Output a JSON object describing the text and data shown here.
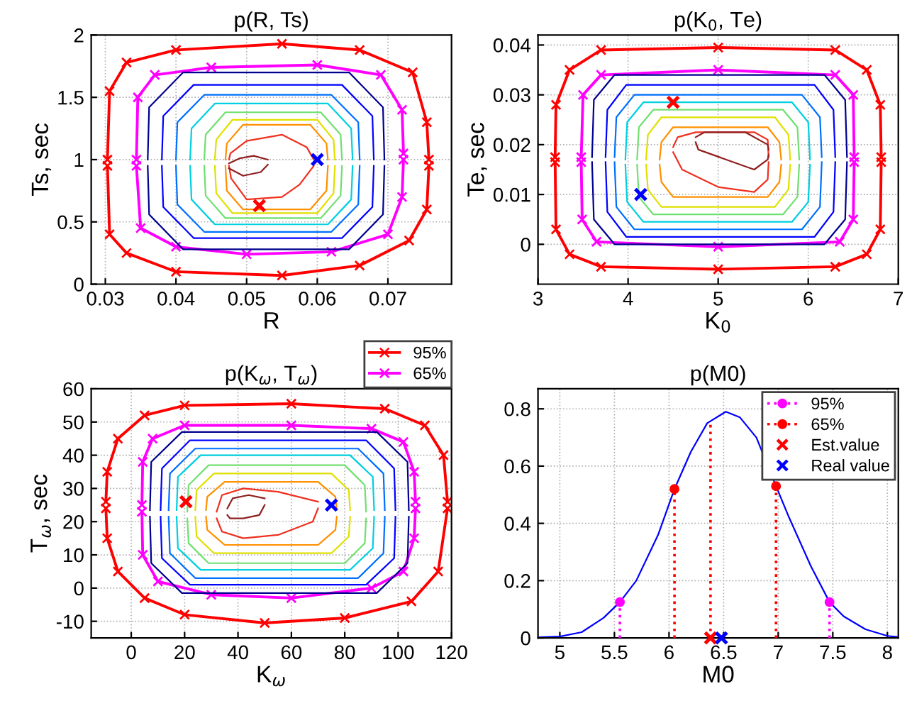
{
  "chart_data": [
    {
      "type": "line",
      "title": "p(R, Ts)",
      "xlabel": "R",
      "ylabel": "Ts, sec",
      "xlim": [
        0.028,
        0.079
      ],
      "ylim": [
        0,
        2
      ],
      "xticks": [
        0.03,
        0.04,
        0.05,
        0.06,
        0.07
      ],
      "yticks": [
        0,
        0.5,
        1,
        1.5,
        2
      ],
      "grid": true,
      "series": [
        {
          "color": "#ff0000",
          "marker": "cross",
          "x": [
            0.0303,
            0.0306,
            0.033,
            0.04,
            0.055,
            0.066,
            0.0735,
            0.0755,
            0.0758
          ],
          "values": [
            1.0,
            1.55,
            1.78,
            1.88,
            1.93,
            1.88,
            1.7,
            1.3,
            1.0
          ]
        },
        {
          "color": "#ff0000",
          "marker": "cross",
          "x": [
            0.0303,
            0.0306,
            0.033,
            0.04,
            0.055,
            0.066,
            0.073,
            0.0755,
            0.0758
          ],
          "values": [
            0.95,
            0.4,
            0.25,
            0.1,
            0.07,
            0.15,
            0.35,
            0.6,
            0.95
          ]
        },
        {
          "color": "#ff00ff",
          "marker": "cross",
          "x": [
            0.0344,
            0.0346,
            0.037,
            0.045,
            0.06,
            0.069,
            0.072,
            0.0722
          ],
          "values": [
            1.0,
            1.5,
            1.68,
            1.74,
            1.76,
            1.68,
            1.4,
            1.05
          ]
        },
        {
          "color": "#ff00ff",
          "marker": "cross",
          "x": [
            0.0344,
            0.035,
            0.04,
            0.05,
            0.062,
            0.07,
            0.072,
            0.0722
          ],
          "values": [
            0.95,
            0.45,
            0.3,
            0.24,
            0.26,
            0.4,
            0.7,
            1.0
          ]
        },
        {
          "color": "#000090",
          "x": [
            0.036,
            0.0362,
            0.041,
            0.0645,
            0.0693,
            0.0695
          ],
          "values": [
            1.0,
            1.42,
            1.7,
            1.7,
            1.42,
            1.0
          ]
        },
        {
          "color": "#000090",
          "x": [
            0.036,
            0.0362,
            0.041,
            0.0645,
            0.0693,
            0.0695
          ],
          "values": [
            0.95,
            0.56,
            0.28,
            0.28,
            0.56,
            0.95
          ]
        },
        {
          "color": "#0000ff",
          "x": [
            0.038,
            0.0382,
            0.0425,
            0.0635,
            0.0678,
            0.068
          ],
          "values": [
            1.0,
            1.35,
            1.6,
            1.6,
            1.35,
            1.0
          ]
        },
        {
          "color": "#0000ff",
          "x": [
            0.038,
            0.0382,
            0.0425,
            0.0635,
            0.0678,
            0.068
          ],
          "values": [
            0.95,
            0.62,
            0.37,
            0.37,
            0.62,
            0.95
          ]
        },
        {
          "color": "#0070ff",
          "x": [
            0.04,
            0.0402,
            0.044,
            0.062,
            0.0658,
            0.066
          ],
          "values": [
            1.0,
            1.3,
            1.52,
            1.52,
            1.3,
            1.0
          ]
        },
        {
          "color": "#0070ff",
          "x": [
            0.04,
            0.0402,
            0.044,
            0.062,
            0.0658,
            0.066
          ],
          "values": [
            0.95,
            0.64,
            0.42,
            0.42,
            0.64,
            0.95
          ]
        },
        {
          "color": "#00d0e0",
          "x": [
            0.042,
            0.0422,
            0.0455,
            0.0615,
            0.0648,
            0.065
          ],
          "values": [
            1.0,
            1.25,
            1.45,
            1.45,
            1.25,
            1.0
          ]
        },
        {
          "color": "#00d0e0",
          "x": [
            0.042,
            0.0422,
            0.0455,
            0.0615,
            0.0648,
            0.065
          ],
          "values": [
            0.95,
            0.68,
            0.48,
            0.48,
            0.68,
            0.95
          ]
        },
        {
          "color": "#70e070",
          "x": [
            0.044,
            0.0442,
            0.047,
            0.0605,
            0.0633,
            0.0635
          ],
          "values": [
            1.0,
            1.2,
            1.38,
            1.38,
            1.2,
            1.0
          ]
        },
        {
          "color": "#70e070",
          "x": [
            0.044,
            0.0442,
            0.047,
            0.0605,
            0.0633,
            0.0635
          ],
          "values": [
            0.95,
            0.71,
            0.53,
            0.53,
            0.71,
            0.95
          ]
        },
        {
          "color": "#e0e000",
          "x": [
            0.0455,
            0.0457,
            0.048,
            0.06,
            0.0623,
            0.0625
          ],
          "values": [
            1.0,
            1.16,
            1.32,
            1.32,
            1.16,
            1.0
          ]
        },
        {
          "color": "#e0e000",
          "x": [
            0.0455,
            0.0457,
            0.048,
            0.06,
            0.0623,
            0.0625
          ],
          "values": [
            0.95,
            0.73,
            0.57,
            0.57,
            0.73,
            0.95
          ]
        },
        {
          "color": "#ff9000",
          "x": [
            0.047,
            0.0472,
            0.0495,
            0.059,
            0.0613,
            0.0615
          ],
          "values": [
            1.0,
            1.13,
            1.28,
            1.28,
            1.13,
            1.0
          ]
        },
        {
          "color": "#ff9000",
          "x": [
            0.047,
            0.0472,
            0.0495,
            0.059,
            0.0613,
            0.0615
          ],
          "values": [
            0.95,
            0.75,
            0.6,
            0.6,
            0.75,
            0.95
          ]
        },
        {
          "color": "#f03020",
          "x": [
            0.0475,
            0.0477,
            0.05,
            0.055,
            0.0585,
            0.0595
          ],
          "values": [
            1.0,
            1.05,
            1.15,
            1.2,
            1.1,
            1.0
          ]
        },
        {
          "color": "#f03020",
          "x": [
            0.0475,
            0.0478,
            0.05,
            0.055,
            0.0575,
            0.0595
          ],
          "values": [
            0.95,
            0.85,
            0.68,
            0.7,
            0.8,
            0.95
          ]
        },
        {
          "color": "#902020",
          "x": [
            0.0475,
            0.049,
            0.051,
            0.053
          ],
          "values": [
            0.97,
            1.01,
            1.03,
            1.0
          ]
        },
        {
          "color": "#902020",
          "x": [
            0.0475,
            0.0495,
            0.052,
            0.053
          ],
          "values": [
            0.93,
            0.87,
            0.9,
            0.96
          ]
        },
        {
          "type": "scatter",
          "color": "#ff0000",
          "marker": "cross",
          "x": [
            0.0518
          ],
          "values": [
            0.63
          ]
        },
        {
          "type": "scatter",
          "color": "#0000ff",
          "marker": "cross",
          "x": [
            0.06
          ],
          "values": [
            1.0
          ]
        }
      ]
    },
    {
      "type": "line",
      "title": "p(K$_{0}$, Te)",
      "xlabel": "K$_{0}$",
      "ylabel": "Te, sec",
      "xlim": [
        3,
        7
      ],
      "ylim": [
        -0.008,
        0.042
      ],
      "xticks": [
        3,
        4,
        5,
        6,
        7
      ],
      "yticks": [
        0,
        0.01,
        0.02,
        0.03,
        0.04
      ],
      "grid": true,
      "series": [
        {
          "color": "#ff0000",
          "marker": "cross",
          "x": [
            3.19,
            3.2,
            3.35,
            3.7,
            5,
            6.3,
            6.65,
            6.8,
            6.81
          ],
          "values": [
            0.0175,
            0.028,
            0.035,
            0.039,
            0.0395,
            0.039,
            0.035,
            0.028,
            0.0175
          ]
        },
        {
          "color": "#ff0000",
          "marker": "cross",
          "x": [
            3.19,
            3.2,
            3.35,
            3.7,
            5,
            6.3,
            6.65,
            6.8,
            6.81
          ],
          "values": [
            0.0165,
            0.003,
            -0.002,
            -0.0045,
            -0.005,
            -0.0045,
            -0.002,
            0.003,
            0.0165
          ]
        },
        {
          "color": "#ff00ff",
          "marker": "cross",
          "x": [
            3.48,
            3.5,
            3.7,
            5,
            6.3,
            6.5,
            6.51
          ],
          "values": [
            0.0175,
            0.03,
            0.034,
            0.035,
            0.034,
            0.03,
            0.0175
          ]
        },
        {
          "color": "#ff00ff",
          "marker": "cross",
          "x": [
            3.48,
            3.49,
            3.65,
            5,
            6.35,
            6.5,
            6.51
          ],
          "values": [
            0.0165,
            0.005,
            0.0005,
            -0.0005,
            0.0005,
            0.005,
            0.0165
          ]
        },
        {
          "color": "#000090",
          "x": [
            3.6,
            3.62,
            3.85,
            6.18,
            6.41,
            6.43
          ],
          "values": [
            0.0175,
            0.029,
            0.034,
            0.034,
            0.029,
            0.0175
          ]
        },
        {
          "color": "#000090",
          "x": [
            3.6,
            3.62,
            3.85,
            6.18,
            6.41,
            6.43
          ],
          "values": [
            0.0165,
            0.005,
            0,
            0,
            0.005,
            0.0165
          ]
        },
        {
          "color": "#0000ff",
          "x": [
            3.75,
            3.77,
            3.98,
            6.07,
            6.28,
            6.3
          ],
          "values": [
            0.0175,
            0.027,
            0.032,
            0.032,
            0.027,
            0.0175
          ]
        },
        {
          "color": "#0000ff",
          "x": [
            3.75,
            3.77,
            3.98,
            6.07,
            6.28,
            6.3
          ],
          "values": [
            0.0165,
            0.0065,
            0.0015,
            0.0015,
            0.0065,
            0.0165
          ]
        },
        {
          "color": "#0070ff",
          "x": [
            3.85,
            3.87,
            4.07,
            5.93,
            6.13,
            6.15
          ],
          "values": [
            0.0175,
            0.0255,
            0.03,
            0.03,
            0.0255,
            0.0175
          ]
        },
        {
          "color": "#0070ff",
          "x": [
            3.85,
            3.87,
            4.07,
            5.93,
            6.13,
            6.15
          ],
          "values": [
            0.0165,
            0.0075,
            0.003,
            0.003,
            0.0075,
            0.0165
          ]
        },
        {
          "color": "#00d0e0",
          "x": [
            3.97,
            3.99,
            4.17,
            5.82,
            6.0,
            6.02
          ],
          "values": [
            0.017,
            0.0245,
            0.0285,
            0.0285,
            0.0245,
            0.017
          ]
        },
        {
          "color": "#00d0e0",
          "x": [
            3.97,
            3.99,
            4.17,
            5.82,
            6.0,
            6.02
          ],
          "values": [
            0.016,
            0.0085,
            0.0045,
            0.0045,
            0.0085,
            0.016
          ]
        },
        {
          "color": "#70e070",
          "x": [
            4.1,
            4.12,
            4.28,
            5.72,
            5.88,
            5.9
          ],
          "values": [
            0.017,
            0.0235,
            0.027,
            0.027,
            0.0235,
            0.017
          ]
        },
        {
          "color": "#70e070",
          "x": [
            4.1,
            4.12,
            4.28,
            5.72,
            5.88,
            5.9
          ],
          "values": [
            0.016,
            0.0095,
            0.006,
            0.006,
            0.0095,
            0.016
          ]
        },
        {
          "color": "#e0e000",
          "x": [
            4.2,
            4.22,
            4.37,
            5.63,
            5.78,
            5.8
          ],
          "values": [
            0.017,
            0.022,
            0.0255,
            0.0255,
            0.022,
            0.017
          ]
        },
        {
          "color": "#e0e000",
          "x": [
            4.2,
            4.22,
            4.37,
            5.63,
            5.78,
            5.8
          ],
          "values": [
            0.016,
            0.011,
            0.0075,
            0.0075,
            0.011,
            0.016
          ]
        },
        {
          "color": "#ff9000",
          "x": [
            4.35,
            4.37,
            4.5,
            5.55,
            5.68,
            5.7
          ],
          "values": [
            0.017,
            0.0205,
            0.0235,
            0.0235,
            0.0205,
            0.017
          ]
        },
        {
          "color": "#ff9000",
          "x": [
            4.35,
            4.37,
            4.5,
            5.55,
            5.68,
            5.7
          ],
          "values": [
            0.016,
            0.0125,
            0.0095,
            0.0095,
            0.0125,
            0.016
          ]
        },
        {
          "color": "#f03020",
          "x": [
            4.5,
            4.55,
            4.75,
            5.4,
            5.55,
            5.56
          ],
          "values": [
            0.0195,
            0.0215,
            0.0225,
            0.0225,
            0.021,
            0.0175
          ]
        },
        {
          "color": "#f03020",
          "x": [
            4.5,
            4.6,
            5.0,
            5.4,
            5.55,
            5.56
          ],
          "values": [
            0.0185,
            0.015,
            0.0115,
            0.0105,
            0.013,
            0.0165
          ]
        },
        {
          "color": "#902020",
          "x": [
            4.75,
            4.85,
            5.3,
            5.55,
            5.56
          ],
          "values": [
            0.0215,
            0.0225,
            0.0225,
            0.02,
            0.019
          ]
        },
        {
          "color": "#902020",
          "x": [
            4.75,
            4.78,
            5.4,
            5.55,
            5.56
          ],
          "values": [
            0.0205,
            0.019,
            0.015,
            0.017,
            0.018
          ]
        },
        {
          "type": "scatter",
          "color": "#ff0000",
          "marker": "cross",
          "x": [
            4.5
          ],
          "values": [
            0.0285
          ]
        },
        {
          "type": "scatter",
          "color": "#0000ff",
          "marker": "cross",
          "x": [
            4.14
          ],
          "values": [
            0.01
          ]
        }
      ]
    },
    {
      "type": "line",
      "title": "p(K$_{ω}$, T$_{ω}$)",
      "xlabel": "K$_{ω}$",
      "ylabel": "T$_{ω}$, sec",
      "xlim": [
        -15,
        120
      ],
      "ylim": [
        -15,
        60
      ],
      "xticks": [
        0,
        20,
        40,
        60,
        80,
        100,
        120
      ],
      "yticks": [
        -10,
        0,
        10,
        20,
        30,
        40,
        50,
        60
      ],
      "grid": true,
      "legend": "top",
      "series": [
        {
          "name": "95%",
          "color": "#ff0000",
          "marker": "cross",
          "x": [
            -9.5,
            -9,
            -5,
            5,
            20,
            60,
            95,
            110,
            117,
            118.5
          ],
          "values": [
            26,
            35,
            45,
            52,
            55,
            55.5,
            54,
            49,
            40,
            26
          ]
        },
        {
          "color": "#ff0000",
          "marker": "cross",
          "x": [
            -9.5,
            -9,
            -5,
            5,
            20,
            50,
            80,
            105,
            115,
            118.5
          ],
          "values": [
            24,
            15,
            5,
            -3,
            -8,
            -10.5,
            -9,
            -4,
            5,
            24
          ]
        },
        {
          "name": "65%",
          "color": "#ff00ff",
          "marker": "cross",
          "x": [
            4,
            4.3,
            8,
            20,
            60,
            90,
            102,
            106,
            106.5
          ],
          "values": [
            25,
            38,
            45,
            49,
            49,
            48,
            44,
            35,
            26
          ]
        },
        {
          "color": "#ff00ff",
          "marker": "cross",
          "x": [
            4,
            4.3,
            10,
            30,
            60,
            90,
            102,
            106,
            106.5
          ],
          "values": [
            23,
            10,
            2,
            -2,
            -3,
            0,
            5,
            15,
            24
          ]
        },
        {
          "color": "#000090",
          "x": [
            7,
            7.5,
            19,
            92,
            103.5,
            104
          ],
          "values": [
            23.5,
            38,
            47,
            47,
            38,
            23.5
          ]
        },
        {
          "color": "#000090",
          "x": [
            7,
            7.5,
            19,
            92,
            103.5,
            104
          ],
          "values": [
            21.5,
            7.5,
            -1.5,
            -1.5,
            7.5,
            21.5
          ]
        },
        {
          "color": "#0000ff",
          "x": [
            11,
            11.5,
            22,
            88,
            98.5,
            99
          ],
          "values": [
            23.5,
            36,
            44.5,
            44.5,
            36,
            23.5
          ]
        },
        {
          "color": "#0000ff",
          "x": [
            11,
            11.5,
            22,
            88,
            98.5,
            99
          ],
          "values": [
            21.5,
            9,
            1,
            1,
            9,
            21.5
          ]
        },
        {
          "color": "#0070ff",
          "x": [
            14,
            14.5,
            24,
            85,
            94.5,
            95
          ],
          "values": [
            23.5,
            34.5,
            42,
            42,
            34.5,
            23.5
          ]
        },
        {
          "color": "#0070ff",
          "x": [
            14,
            14.5,
            24,
            85,
            94.5,
            95
          ],
          "values": [
            21.5,
            10.5,
            3,
            3,
            10.5,
            21.5
          ]
        },
        {
          "color": "#00d0e0",
          "x": [
            17,
            17.5,
            26,
            82,
            90.5,
            91
          ],
          "values": [
            23.5,
            33.5,
            40,
            40,
            33.5,
            23.5
          ]
        },
        {
          "color": "#00d0e0",
          "x": [
            17,
            17.5,
            26,
            82,
            90.5,
            91
          ],
          "values": [
            21.5,
            12,
            5.5,
            5.5,
            12,
            21.5
          ]
        },
        {
          "color": "#70e070",
          "x": [
            21,
            21.5,
            29,
            80,
            87.5,
            88
          ],
          "values": [
            23,
            31,
            37,
            37,
            31,
            23
          ]
        },
        {
          "color": "#70e070",
          "x": [
            21,
            21.5,
            29,
            80,
            87.5,
            88
          ],
          "values": [
            21,
            13.5,
            7.5,
            7.5,
            13.5,
            21
          ]
        },
        {
          "color": "#e0e000",
          "x": [
            24,
            24.5,
            31,
            75,
            81.5,
            82
          ],
          "values": [
            23.5,
            29.5,
            34.5,
            34.5,
            29.5,
            23.5
          ]
        },
        {
          "color": "#e0e000",
          "x": [
            24,
            24.5,
            31,
            75,
            81.5,
            82
          ],
          "values": [
            21.5,
            15.5,
            10.5,
            10.5,
            15.5,
            21.5
          ]
        },
        {
          "color": "#ff9000",
          "x": [
            28,
            28.5,
            35,
            70,
            76.5,
            77
          ],
          "values": [
            23.5,
            27.5,
            32,
            32,
            27.5,
            23.5
          ]
        },
        {
          "color": "#ff9000",
          "x": [
            28,
            28.5,
            35,
            70,
            76.5,
            77
          ],
          "values": [
            21.5,
            17.5,
            13,
            13,
            17.5,
            21.5
          ]
        },
        {
          "color": "#f03020",
          "x": [
            32,
            34,
            42,
            55,
            70
          ],
          "values": [
            23,
            28,
            30,
            29,
            26
          ]
        },
        {
          "color": "#f03020",
          "x": [
            32,
            34,
            42,
            55,
            68,
            70
          ],
          "values": [
            21,
            17,
            15,
            16,
            20,
            24
          ]
        },
        {
          "color": "#902020",
          "x": [
            36,
            38,
            44,
            50
          ],
          "values": [
            24,
            27,
            28,
            27
          ]
        },
        {
          "color": "#902020",
          "x": [
            36,
            37,
            42,
            48,
            50
          ],
          "values": [
            22,
            21,
            21,
            22,
            25
          ]
        },
        {
          "type": "scatter",
          "color": "#ff0000",
          "marker": "cross",
          "x": [
            20.5
          ],
          "values": [
            26
          ]
        },
        {
          "type": "scatter",
          "color": "#0000ff",
          "marker": "cross",
          "x": [
            75
          ],
          "values": [
            25
          ]
        }
      ]
    },
    {
      "type": "line",
      "title": "p(M0)",
      "xlabel": "M0",
      "xlim": [
        4.8,
        8.1
      ],
      "ylim": [
        0,
        0.87
      ],
      "xticks": [
        5,
        5.5,
        6,
        6.5,
        7,
        7.5,
        8
      ],
      "yticks": [
        0,
        0.2,
        0.4,
        0.6,
        0.8
      ],
      "grid": true,
      "legend": "top right",
      "series": [
        {
          "color": "#0000ff",
          "x": [
            4.8,
            5.0,
            5.2,
            5.4,
            5.55,
            5.7,
            5.9,
            6.05,
            6.2,
            6.35,
            6.52,
            6.65,
            6.8,
            6.98,
            7.1,
            7.3,
            7.47,
            7.6,
            7.8,
            8.0,
            8.1
          ],
          "values": [
            0.002,
            0.005,
            0.02,
            0.07,
            0.125,
            0.2,
            0.36,
            0.52,
            0.65,
            0.75,
            0.79,
            0.77,
            0.7,
            0.53,
            0.42,
            0.25,
            0.125,
            0.075,
            0.03,
            0.007,
            0.003
          ]
        },
        {
          "type": "lollipop",
          "name": "95%",
          "color": "#ff00ff",
          "marker": "circle",
          "line_style": "dotted",
          "x": [
            5.55,
            7.47
          ],
          "values": [
            0.125,
            0.125
          ]
        },
        {
          "type": "lollipop",
          "name": "65%",
          "color": "#ff0000",
          "marker": "circle",
          "line_style": "dotted",
          "x": [
            6.05,
            6.98
          ],
          "values": [
            0.52,
            0.53
          ]
        },
        {
          "type": "line",
          "color": "#ff0000",
          "line_style": "dotted",
          "x": [
            6.38,
            6.38
          ],
          "values": [
            0,
            0.755
          ]
        },
        {
          "type": "scatter",
          "name": "Est.value",
          "color": "#ff0000",
          "marker": "cross",
          "x": [
            6.38
          ],
          "values": [
            0
          ]
        },
        {
          "type": "scatter",
          "name": "Real value",
          "color": "#0000ff",
          "marker": "cross",
          "x": [
            6.48
          ],
          "values": [
            0
          ]
        }
      ]
    }
  ]
}
